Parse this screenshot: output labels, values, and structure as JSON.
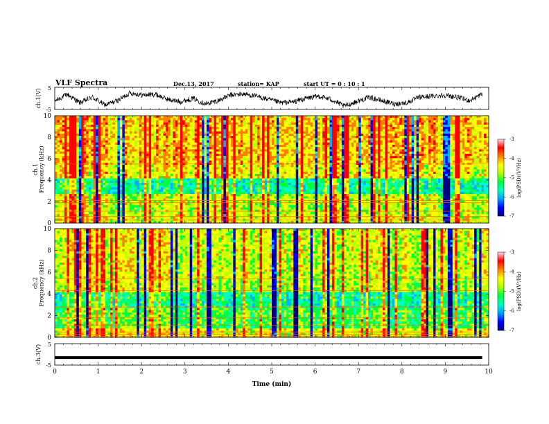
{
  "header": {
    "title": "VLF Spectra",
    "date": "Dec.13, 2017",
    "station": "station= KAP",
    "start_ut": "start  UT =   0 : 10 : 1"
  },
  "chart_data": [
    {
      "type": "line",
      "panel": "ch1-waveform",
      "ylabel": "ch.1(V)",
      "ylim": [
        -5,
        5
      ],
      "yticks": [
        "5",
        "-5"
      ],
      "x_range_min": [
        0,
        9.85
      ],
      "approx_profile": [
        -1.2,
        1.8,
        -2.0,
        0.5,
        -3.0,
        -1.0,
        2.5,
        1.5,
        1.8,
        -0.5,
        -1.5,
        0.0,
        -2.5,
        -1.0,
        1.5,
        2.0,
        1.0,
        -0.5,
        -2.0,
        -1.5,
        0.0,
        1.0,
        -0.5,
        -3.5,
        -1.5,
        0.5,
        -1.0,
        -2.5,
        -2.0,
        0.5,
        1.0,
        1.5,
        0.5,
        -1.0,
        2.0
      ]
    },
    {
      "type": "heatmap",
      "panel": "ch1-spectrogram",
      "ylabel": "ch.1\nFrequency (kHz)",
      "ylim": [
        0,
        10
      ],
      "yticks": [
        "0",
        "2",
        "4",
        "6",
        "8",
        "10"
      ],
      "colorbar": {
        "label": "log(PSD)(V²/Hz)",
        "range": [
          -7,
          -3
        ],
        "ticks": [
          "-3",
          "-4",
          "-5",
          "-6",
          "-7"
        ]
      }
    },
    {
      "type": "heatmap",
      "panel": "ch2-spectrogram",
      "ylabel": "ch.2\nFrequency (kHz)",
      "ylim": [
        0,
        10
      ],
      "yticks": [
        "0",
        "2",
        "4",
        "6",
        "8",
        "10"
      ],
      "colorbar": {
        "label": "log(PSD)(V²/Hz)",
        "range": [
          -7,
          -3
        ],
        "ticks": [
          "-3",
          "-4",
          "-5",
          "-6",
          "-7"
        ]
      }
    },
    {
      "type": "line",
      "panel": "ch3-waveform",
      "ylabel": "ch.3(V)",
      "ylim": [
        -5,
        5
      ],
      "yticks": [
        "5",
        "-5"
      ],
      "constant_value": -1.5
    }
  ],
  "xaxis": {
    "label": "Time (min)",
    "ticks": [
      "0",
      "1",
      "2",
      "3",
      "4",
      "5",
      "6",
      "7",
      "8",
      "9",
      "10"
    ],
    "range": [
      0,
      10
    ]
  },
  "colors": {
    "colormap": [
      "#000080",
      "#0000ff",
      "#00b0ff",
      "#00ffc0",
      "#00ff40",
      "#c0ff00",
      "#ffff00",
      "#ff8000",
      "#ff0000",
      "#ffd0e0"
    ]
  }
}
